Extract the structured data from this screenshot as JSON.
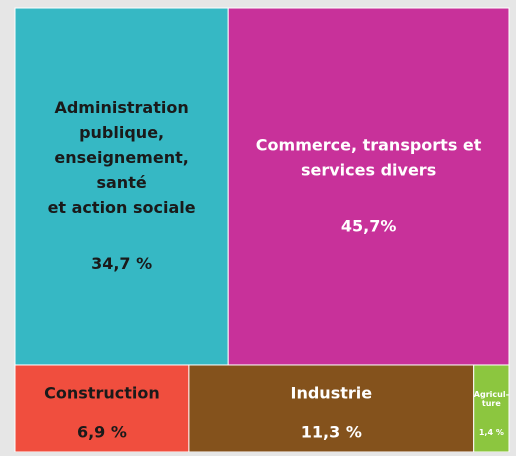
{
  "chart_data": {
    "type": "treemap",
    "categories": [
      [
        "Administration",
        "publique,",
        "enseignement,",
        "santé",
        "et action sociale"
      ],
      [
        "Commerce, transports et",
        "services divers"
      ],
      [
        "Construction"
      ],
      [
        "Industrie"
      ],
      [
        "Agricul-",
        "ture"
      ]
    ],
    "values": [
      34.7,
      45.7,
      6.9,
      11.3,
      1.4
    ],
    "value_labels": [
      "34,7 %",
      "45,7%",
      "6,9 %",
      "11,3 %",
      "1,4 %"
    ],
    "colors": [
      "#36b8c4",
      "#c8319a",
      "#f04e3e",
      "#84521c",
      "#8cc63f"
    ],
    "label_colors": [
      "#1a1a1a",
      "#ffffff",
      "#1a1a1a",
      "#ffffff",
      "#ffffff"
    ]
  }
}
